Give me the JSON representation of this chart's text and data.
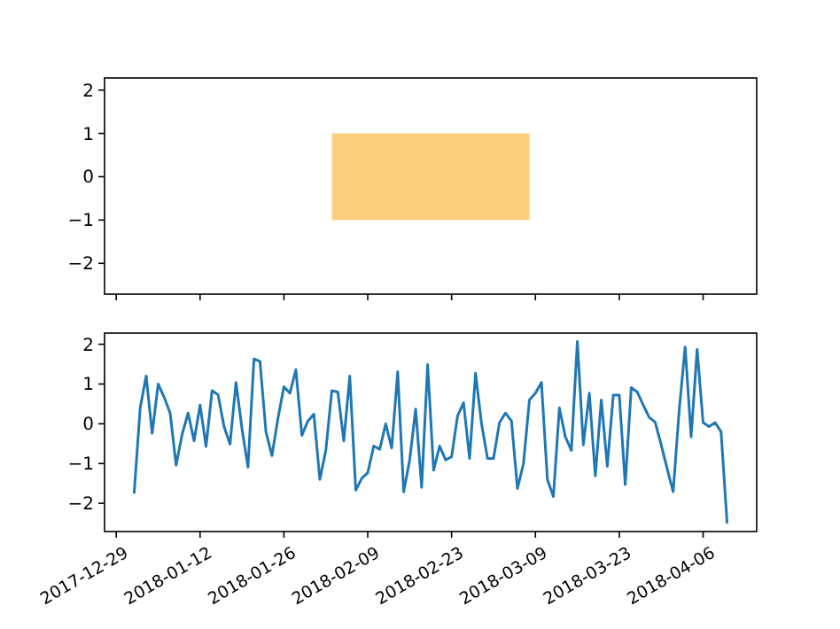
{
  "chart_data": [
    {
      "type": "bar",
      "xlim": [
        "2017-12-27T01:12",
        "2018-04-14T22:48"
      ],
      "ylim": [
        -2.71,
        2.28
      ],
      "xticks": [
        "2017-12-29",
        "2018-01-12",
        "2018-01-26",
        "2018-02-09",
        "2018-02-23",
        "2018-03-09",
        "2018-03-23",
        "2018-04-06"
      ],
      "yticks": [
        -2,
        -1,
        0,
        1,
        2
      ],
      "tick_labels": "y",
      "x": [
        "2018-02-19T12:00"
      ],
      "series": [
        {
          "color": "#fdcf7c",
          "values": [
            2
          ],
          "base": [
            -1
          ]
        }
      ]
    },
    {
      "type": "line",
      "xlim": [
        "2017-12-27T01:12",
        "2018-04-14T22:48"
      ],
      "ylim": [
        -2.71,
        2.28
      ],
      "xticks": [
        "2017-12-29",
        "2018-01-12",
        "2018-01-26",
        "2018-02-09",
        "2018-02-23",
        "2018-03-09",
        "2018-03-23",
        "2018-04-06"
      ],
      "yticks": [
        -2,
        -1,
        0,
        1,
        2
      ],
      "x": [
        "2018-01-01",
        "2018-01-02",
        "2018-01-03",
        "2018-01-04",
        "2018-01-05",
        "2018-01-06",
        "2018-01-07",
        "2018-01-08",
        "2018-01-09",
        "2018-01-10",
        "2018-01-11",
        "2018-01-12",
        "2018-01-13",
        "2018-01-14",
        "2018-01-15",
        "2018-01-16",
        "2018-01-17",
        "2018-01-18",
        "2018-01-19",
        "2018-01-20",
        "2018-01-21",
        "2018-01-22",
        "2018-01-23",
        "2018-01-24",
        "2018-01-25",
        "2018-01-26",
        "2018-01-27",
        "2018-01-28",
        "2018-01-29",
        "2018-01-30",
        "2018-01-31",
        "2018-02-01",
        "2018-02-02",
        "2018-02-03",
        "2018-02-04",
        "2018-02-05",
        "2018-02-06",
        "2018-02-07",
        "2018-02-08",
        "2018-02-09",
        "2018-02-10",
        "2018-02-11",
        "2018-02-12",
        "2018-02-13",
        "2018-02-14",
        "2018-02-15",
        "2018-02-16",
        "2018-02-17",
        "2018-02-18",
        "2018-02-19",
        "2018-02-20",
        "2018-02-21",
        "2018-02-22",
        "2018-02-23",
        "2018-02-24",
        "2018-02-25",
        "2018-02-26",
        "2018-02-27",
        "2018-02-28",
        "2018-03-01",
        "2018-03-02",
        "2018-03-03",
        "2018-03-04",
        "2018-03-05",
        "2018-03-06",
        "2018-03-07",
        "2018-03-08",
        "2018-03-09",
        "2018-03-10",
        "2018-03-11",
        "2018-03-12",
        "2018-03-13",
        "2018-03-14",
        "2018-03-15",
        "2018-03-16",
        "2018-03-17",
        "2018-03-18",
        "2018-03-19",
        "2018-03-20",
        "2018-03-21",
        "2018-03-22",
        "2018-03-23",
        "2018-03-24",
        "2018-03-25",
        "2018-03-26",
        "2018-03-27",
        "2018-03-28",
        "2018-03-29",
        "2018-03-30",
        "2018-03-31",
        "2018-04-01",
        "2018-04-02",
        "2018-04-03",
        "2018-04-04",
        "2018-04-05",
        "2018-04-06",
        "2018-04-07",
        "2018-04-08",
        "2018-04-09",
        "2018-04-10"
      ],
      "series": [
        {
          "color": "#1f77b4",
          "values": [
            -1.73,
            0.4,
            1.2,
            -0.24,
            1.0,
            0.67,
            0.27,
            -1.04,
            -0.27,
            0.27,
            -0.43,
            0.47,
            -0.57,
            0.83,
            0.73,
            -0.07,
            -0.51,
            1.04,
            -0.13,
            -1.09,
            1.63,
            1.57,
            -0.2,
            -0.8,
            0.13,
            0.93,
            0.77,
            1.36,
            -0.29,
            0.07,
            0.24,
            -1.4,
            -0.67,
            0.83,
            0.8,
            -0.43,
            1.2,
            -1.67,
            -1.37,
            -1.23,
            -0.56,
            -0.64,
            0.0,
            -0.61,
            1.31,
            -1.71,
            -0.91,
            0.37,
            -1.6,
            1.49,
            -1.17,
            -0.56,
            -0.91,
            -0.83,
            0.2,
            0.53,
            -0.87,
            1.27,
            0,
            -0.87,
            -0.87,
            0.03,
            0.27,
            0.07,
            -1.63,
            -1.0,
            0.6,
            0.77,
            1.04,
            -1.4,
            -1.83,
            0.4,
            -0.33,
            -0.67,
            2.07,
            -0.53,
            0.77,
            -1.31,
            0.6,
            -1.07,
            0.72,
            0.72,
            -1.53,
            0.91,
            0.8,
            0.47,
            0.16,
            0.04,
            -0.53,
            -1.13,
            -1.71,
            0.33,
            1.93,
            -0.33,
            1.87,
            0.03,
            -0.07,
            0.03,
            -0.2,
            -2.48
          ]
        }
      ]
    }
  ]
}
